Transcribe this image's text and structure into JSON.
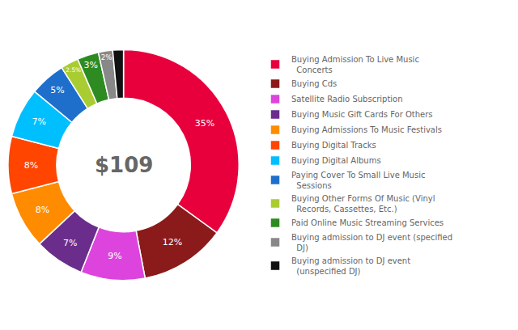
{
  "chart_data": {
    "type": "pie",
    "categories": [
      "Buying Admission To Live Music\n  Concerts",
      "Buying Cds",
      "Satellite Radio Subscription",
      "Buying Music Gift Cards For Others",
      "Buying Admissions To Music Festivals",
      "Buying Digital Tracks",
      "Buying Digital Albums",
      "Paying Cover To Small Live Music\n  Sessions",
      "Buying Other Forms Of Music (Vinyl\n  Records, Cassettes, Etc.)",
      "Paid Online Music Streaming Services",
      "Buying admission to DJ event (specified\n  DJ)",
      "Buying admission to DJ event\n  (unspecified DJ)"
    ],
    "values": [
      35,
      12,
      9,
      7,
      8,
      8,
      7,
      5,
      2.5,
      3,
      2,
      1.5
    ],
    "value_labels": [
      "35%",
      "12%",
      "9%",
      "7%",
      "8%",
      "8%",
      "7%",
      "5%",
      "2.5%",
      "3%",
      "2%",
      null
    ],
    "data_labels": true,
    "colors": [
      "#E8003C",
      "#8B1A1A",
      "#DD44DD",
      "#6B2D8B",
      "#FF8C00",
      "#FF4500",
      "#00BFFF",
      "#1E6FCC",
      "#AACC33",
      "#2E8B22",
      "#888888",
      "#111111"
    ],
    "annotations": [
      {
        "text": "$109"
      }
    ],
    "legend": "right"
  }
}
